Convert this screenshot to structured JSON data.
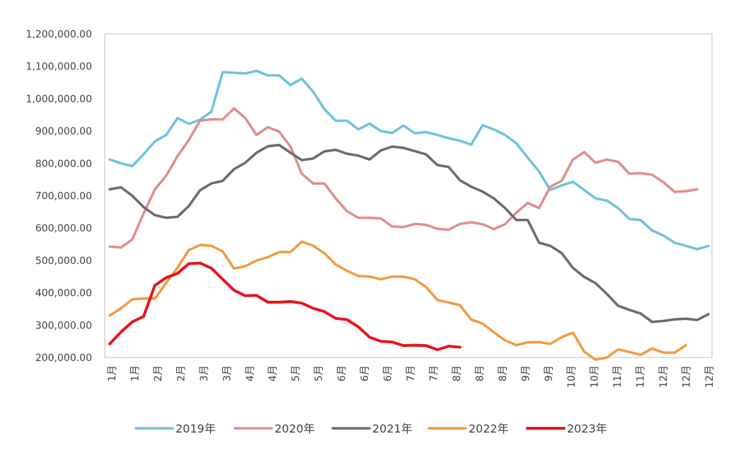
{
  "chart_data": {
    "type": "line",
    "title": "",
    "xlabel": "",
    "ylabel": "",
    "ylim": [
      200000,
      1200000
    ],
    "y_ticks": [
      "200,000.00",
      "300,000.00",
      "400,000.00",
      "500,000.00",
      "600,000.00",
      "700,000.00",
      "800,000.00",
      "900,000.00",
      "1,000,000.00",
      "1,100,000.00",
      "1,200,000.00"
    ],
    "x_ticks": [
      "1月",
      "1月",
      "2月",
      "2月",
      "3月",
      "3月",
      "4月",
      "4月",
      "5月",
      "5月",
      "6月",
      "6月",
      "6月",
      "7月",
      "7月",
      "8月",
      "8月",
      "8月",
      "9月",
      "9月",
      "10月",
      "10月",
      "11月",
      "11月",
      "12月",
      "12月",
      "12月"
    ],
    "grid": false,
    "legend_position": "bottom",
    "series": [
      {
        "name": "2019年",
        "color": "#6ec3db",
        "values": [
          812000,
          800000,
          792000,
          828000,
          868000,
          888000,
          940000,
          922000,
          935000,
          960000,
          1082000,
          1080000,
          1078000,
          1086000,
          1072000,
          1072000,
          1042000,
          1062000,
          1022000,
          968000,
          932000,
          932000,
          905000,
          923000,
          900000,
          894000,
          917000,
          893000,
          897000,
          888000,
          878000,
          870000,
          858000,
          918000,
          905000,
          888000,
          862000,
          818000,
          775000,
          718000,
          732000,
          743000,
          718000,
          692000,
          685000,
          662000,
          628000,
          625000,
          593000,
          577000,
          555000,
          545000,
          535000,
          545000
        ]
      },
      {
        "name": "2020年",
        "color": "#e08e8c",
        "values": [
          543000,
          540000,
          565000,
          645000,
          720000,
          762000,
          822000,
          872000,
          932000,
          936000,
          936000,
          970000,
          940000,
          888000,
          912000,
          898000,
          852000,
          768000,
          738000,
          738000,
          692000,
          652000,
          632000,
          632000,
          630000,
          605000,
          603000,
          613000,
          610000,
          598000,
          595000,
          613000,
          618000,
          612000,
          597000,
          612000,
          648000,
          678000,
          662000,
          728000,
          746000,
          812000,
          835000,
          802000,
          812000,
          805000,
          768000,
          770000,
          765000,
          742000,
          712000,
          714000,
          720000
        ]
      },
      {
        "name": "2021年",
        "color": "#6a6a6a",
        "values": [
          720000,
          726000,
          700000,
          665000,
          640000,
          632000,
          635000,
          668000,
          717000,
          738000,
          746000,
          782000,
          802000,
          833000,
          853000,
          857000,
          833000,
          810000,
          815000,
          837000,
          842000,
          830000,
          824000,
          812000,
          840000,
          852000,
          848000,
          838000,
          828000,
          795000,
          789000,
          748000,
          728000,
          713000,
          692000,
          662000,
          625000,
          625000,
          555000,
          545000,
          523000,
          477000,
          449000,
          430000,
          397000,
          360000,
          347000,
          336000,
          310000,
          313000,
          318000,
          320000,
          316000,
          334000
        ]
      },
      {
        "name": "2022年",
        "color": "#f39a41",
        "values": [
          330000,
          352000,
          380000,
          382000,
          382000,
          430000,
          478000,
          532000,
          548000,
          545000,
          528000,
          475000,
          482000,
          500000,
          510000,
          526000,
          526000,
          558000,
          546000,
          522000,
          488000,
          468000,
          452000,
          450000,
          442000,
          450000,
          450000,
          442000,
          418000,
          378000,
          370000,
          362000,
          317000,
          305000,
          278000,
          253000,
          238000,
          247000,
          248000,
          242000,
          263000,
          277000,
          218000,
          193000,
          200000,
          225000,
          217000,
          208000,
          228000,
          215000,
          215000,
          238000
        ]
      },
      {
        "name": "2023年",
        "color": "#e8141c",
        "values": [
          242000,
          279000,
          310000,
          327000,
          423000,
          447000,
          460000,
          490000,
          492000,
          476000,
          442000,
          408000,
          391000,
          392000,
          371000,
          371000,
          373000,
          368000,
          352000,
          342000,
          321000,
          317000,
          295000,
          263000,
          250000,
          248000,
          237000,
          238000,
          237000,
          224000,
          235000,
          232000
        ]
      }
    ]
  }
}
